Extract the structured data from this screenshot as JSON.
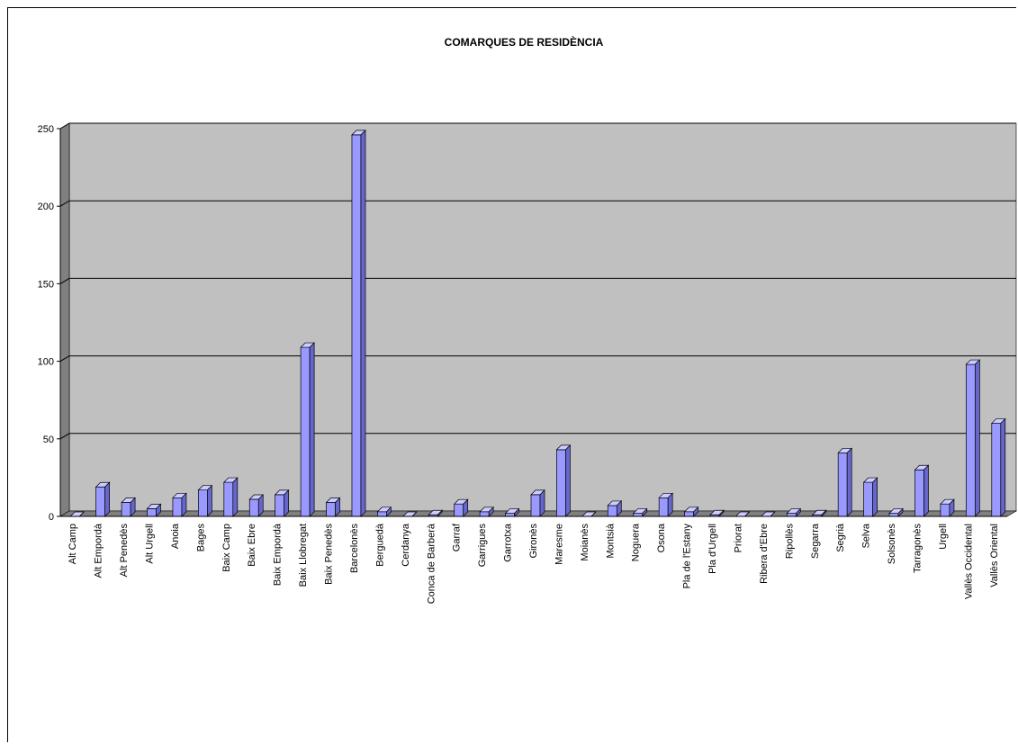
{
  "chart_data": {
    "type": "bar",
    "title": "COMARQUES DE RESIDÈNCIA",
    "xlabel": "",
    "ylabel": "",
    "ylim": [
      0,
      250
    ],
    "yticks": [
      0,
      50,
      100,
      150,
      200,
      250
    ],
    "grid": true,
    "legend": "none",
    "colors": {
      "bar_front": "#9999ff",
      "bar_top": "#ccccff",
      "bar_side": "#6666cc",
      "plot_back": "#c0c0c0",
      "plot_wall": "#808080",
      "floor": "#808080"
    },
    "categories": [
      "Alt Camp",
      "Alt Empordà",
      "Alt Penedès",
      "Alt Urgell",
      "Anoia",
      "Bages",
      "Baix Camp",
      "Baix Ebre",
      "Baix Empordà",
      "Baix Llobregat",
      "Baix Penedès",
      "Barcelonès",
      "Berguedà",
      "Cerdanya",
      "Conca de Barberà",
      "Garraf",
      "Garrigues",
      "Garrotxa",
      "Gironès",
      "Maresme",
      "Moianès",
      "Montsià",
      "Noguera",
      "Osona",
      "Pla de l'Estany",
      "Pla d'Urgell",
      "Priorat",
      "Ribera d'Ebre",
      "Ripollès",
      "Segarra",
      "Segrià",
      "Selva",
      "Solsonès",
      "Tarragonès",
      "Urgell",
      "Vallès Occidental",
      "Vallès Oriental"
    ],
    "values": [
      0,
      19,
      9,
      5,
      12,
      17,
      22,
      11,
      14,
      109,
      9,
      246,
      3,
      0,
      1,
      8,
      3,
      2,
      14,
      43,
      0,
      7,
      2,
      12,
      3,
      1,
      0,
      0,
      2,
      1,
      41,
      22,
      2,
      30,
      8,
      98,
      60
    ]
  }
}
